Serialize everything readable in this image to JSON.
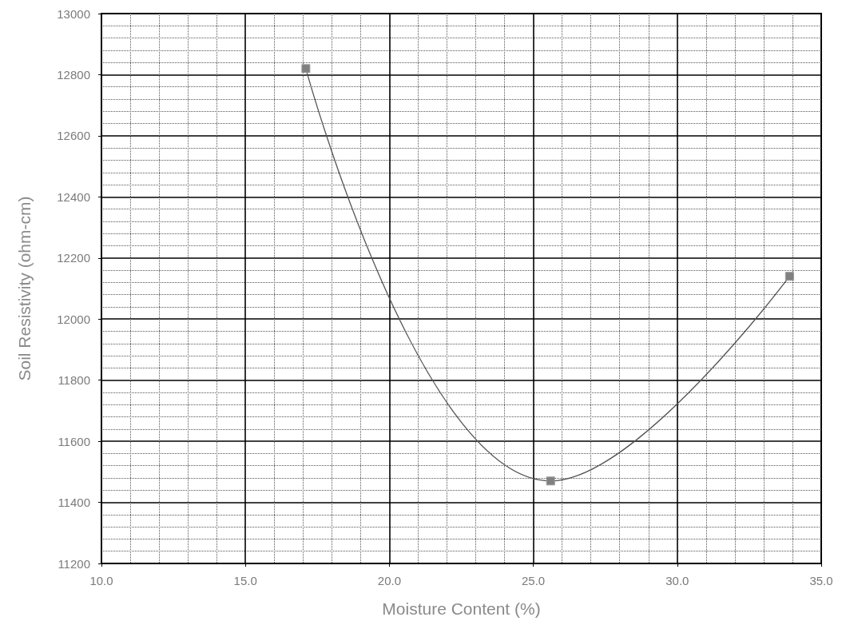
{
  "chart_data": {
    "type": "line",
    "xlabel": "Moisture Content (%)",
    "ylabel": "Soil Resistivity (ohm-cm)",
    "x": [
      17.1,
      25.6,
      33.9
    ],
    "series": [
      {
        "color": "#808080",
        "values": [
          12820,
          11470,
          12140
        ]
      }
    ],
    "xlim": [
      10,
      35
    ],
    "xticks": [
      {
        "value": 10,
        "label": "10.0"
      },
      {
        "value": 15,
        "label": "15.0"
      },
      {
        "value": 20,
        "label": "20.0"
      },
      {
        "value": 25,
        "label": "25.0"
      },
      {
        "value": 30,
        "label": "30.0"
      },
      {
        "value": 35,
        "label": "35.0"
      }
    ],
    "ylim": [
      11200,
      13000
    ],
    "yticks": [
      11200,
      11400,
      11600,
      11800,
      12000,
      12200,
      12400,
      12600,
      12800,
      13000
    ],
    "grid": true,
    "marker": "square",
    "line_style": "solid"
  }
}
